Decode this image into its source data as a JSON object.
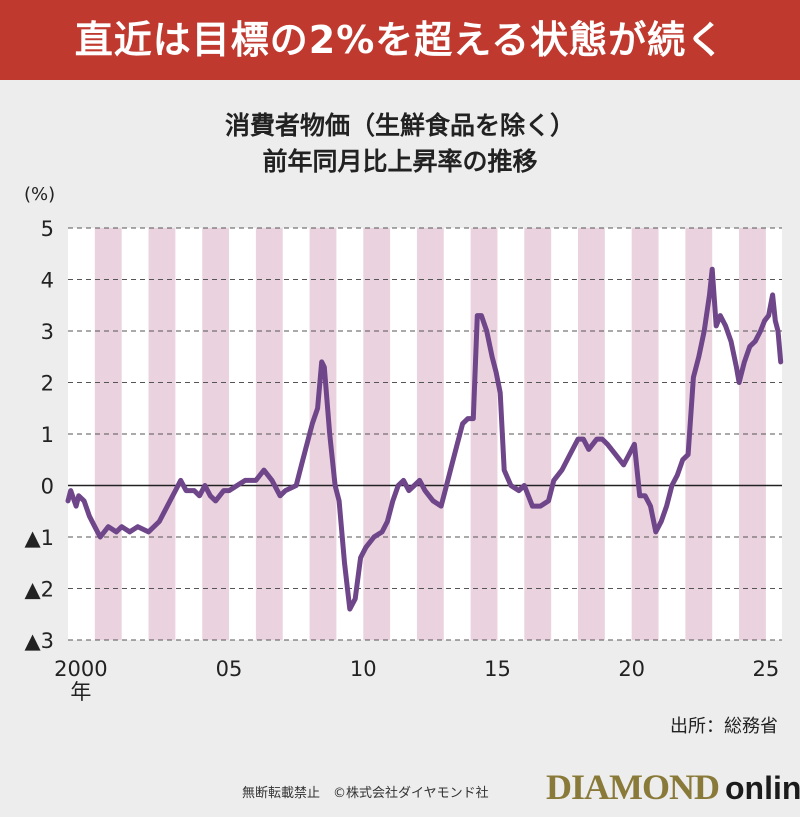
{
  "banner": {
    "headline": "直近は目標の2%を超える状態が続く"
  },
  "chart_data": {
    "type": "line",
    "title": "消費者物価（生鮮食品を除く）",
    "subtitle": "前年同月比上昇率の推移",
    "y_unit_label": "(%)",
    "x_tick_labels": [
      "2000\n年",
      "05",
      "10",
      "15",
      "20",
      "25"
    ],
    "x_tick_years": [
      2000,
      2005,
      2010,
      2015,
      2020,
      2025
    ],
    "y_ticks": [
      5,
      4,
      3,
      2,
      1,
      0,
      -1,
      -2,
      -3
    ],
    "y_tick_labels": [
      "5",
      "4",
      "3",
      "2",
      "1",
      "0",
      "▲1",
      "▲2",
      "▲3"
    ],
    "ylim": [
      -3,
      5
    ],
    "xlim": [
      1999.0,
      2025.6
    ],
    "grid": "dashed horizontal",
    "shaded_bands": "alternating years",
    "line_color": "#6e4689",
    "band_color": "#ead3df",
    "series": [
      {
        "name": "",
        "points": [
          [
            1999.0,
            -0.3
          ],
          [
            1999.1,
            -0.1
          ],
          [
            1999.3,
            -0.4
          ],
          [
            1999.4,
            -0.2
          ],
          [
            1999.6,
            -0.3
          ],
          [
            1999.8,
            -0.6
          ],
          [
            2000.0,
            -0.8
          ],
          [
            2000.2,
            -1.0
          ],
          [
            2000.5,
            -0.8
          ],
          [
            2000.8,
            -0.9
          ],
          [
            2001.0,
            -0.8
          ],
          [
            2001.3,
            -0.9
          ],
          [
            2001.6,
            -0.8
          ],
          [
            2002.0,
            -0.9
          ],
          [
            2002.4,
            -0.7
          ],
          [
            2002.7,
            -0.4
          ],
          [
            2003.0,
            -0.1
          ],
          [
            2003.2,
            0.1
          ],
          [
            2003.4,
            -0.1
          ],
          [
            2003.7,
            -0.1
          ],
          [
            2003.9,
            -0.2
          ],
          [
            2004.1,
            0.0
          ],
          [
            2004.3,
            -0.2
          ],
          [
            2004.5,
            -0.3
          ],
          [
            2004.8,
            -0.1
          ],
          [
            2005.0,
            -0.1
          ],
          [
            2005.3,
            0.0
          ],
          [
            2005.6,
            0.1
          ],
          [
            2006.0,
            0.1
          ],
          [
            2006.3,
            0.3
          ],
          [
            2006.6,
            0.1
          ],
          [
            2006.9,
            -0.2
          ],
          [
            2007.1,
            -0.1
          ],
          [
            2007.5,
            0.0
          ],
          [
            2007.7,
            0.4
          ],
          [
            2007.9,
            0.8
          ],
          [
            2008.1,
            1.2
          ],
          [
            2008.3,
            1.5
          ],
          [
            2008.45,
            2.4
          ],
          [
            2008.55,
            2.3
          ],
          [
            2008.75,
            1.0
          ],
          [
            2008.95,
            0.0
          ],
          [
            2009.1,
            -0.3
          ],
          [
            2009.3,
            -1.5
          ],
          [
            2009.5,
            -2.4
          ],
          [
            2009.7,
            -2.2
          ],
          [
            2009.9,
            -1.4
          ],
          [
            2010.1,
            -1.2
          ],
          [
            2010.4,
            -1.0
          ],
          [
            2010.7,
            -0.9
          ],
          [
            2010.9,
            -0.7
          ],
          [
            2011.1,
            -0.3
          ],
          [
            2011.3,
            0.0
          ],
          [
            2011.5,
            0.1
          ],
          [
            2011.7,
            -0.1
          ],
          [
            2011.9,
            0.0
          ],
          [
            2012.1,
            0.1
          ],
          [
            2012.3,
            -0.1
          ],
          [
            2012.6,
            -0.3
          ],
          [
            2012.9,
            -0.4
          ],
          [
            2013.1,
            0.0
          ],
          [
            2013.3,
            0.4
          ],
          [
            2013.5,
            0.8
          ],
          [
            2013.7,
            1.2
          ],
          [
            2013.9,
            1.3
          ],
          [
            2014.1,
            1.3
          ],
          [
            2014.25,
            3.3
          ],
          [
            2014.4,
            3.3
          ],
          [
            2014.6,
            3.0
          ],
          [
            2014.8,
            2.5
          ],
          [
            2014.95,
            2.2
          ],
          [
            2015.1,
            1.8
          ],
          [
            2015.25,
            0.3
          ],
          [
            2015.5,
            0.0
          ],
          [
            2015.8,
            -0.1
          ],
          [
            2016.0,
            0.0
          ],
          [
            2016.3,
            -0.4
          ],
          [
            2016.6,
            -0.4
          ],
          [
            2016.9,
            -0.3
          ],
          [
            2017.1,
            0.1
          ],
          [
            2017.4,
            0.3
          ],
          [
            2017.7,
            0.6
          ],
          [
            2018.0,
            0.9
          ],
          [
            2018.2,
            0.9
          ],
          [
            2018.4,
            0.7
          ],
          [
            2018.7,
            0.9
          ],
          [
            2018.9,
            0.9
          ],
          [
            2019.1,
            0.8
          ],
          [
            2019.4,
            0.6
          ],
          [
            2019.7,
            0.4
          ],
          [
            2019.9,
            0.6
          ],
          [
            2020.1,
            0.8
          ],
          [
            2020.3,
            -0.2
          ],
          [
            2020.5,
            -0.2
          ],
          [
            2020.7,
            -0.4
          ],
          [
            2020.9,
            -0.9
          ],
          [
            2021.1,
            -0.7
          ],
          [
            2021.3,
            -0.4
          ],
          [
            2021.5,
            0.0
          ],
          [
            2021.7,
            0.2
          ],
          [
            2021.9,
            0.5
          ],
          [
            2022.1,
            0.6
          ],
          [
            2022.3,
            2.1
          ],
          [
            2022.5,
            2.5
          ],
          [
            2022.7,
            3.0
          ],
          [
            2022.9,
            3.7
          ],
          [
            2023.0,
            4.2
          ],
          [
            2023.15,
            3.1
          ],
          [
            2023.3,
            3.3
          ],
          [
            2023.5,
            3.1
          ],
          [
            2023.7,
            2.8
          ],
          [
            2023.9,
            2.3
          ],
          [
            2024.0,
            2.0
          ],
          [
            2024.2,
            2.4
          ],
          [
            2024.4,
            2.7
          ],
          [
            2024.6,
            2.8
          ],
          [
            2024.8,
            3.0
          ],
          [
            2024.95,
            3.2
          ],
          [
            2025.1,
            3.3
          ],
          [
            2025.25,
            3.7
          ],
          [
            2025.35,
            3.2
          ],
          [
            2025.45,
            3.0
          ],
          [
            2025.55,
            2.4
          ]
        ]
      }
    ]
  },
  "source": "出所：総務省",
  "footer": {
    "note": "無断転載禁止　©株式会社ダイヤモンド社",
    "brand_main": "DIAMOND",
    "brand_sub": "online"
  }
}
